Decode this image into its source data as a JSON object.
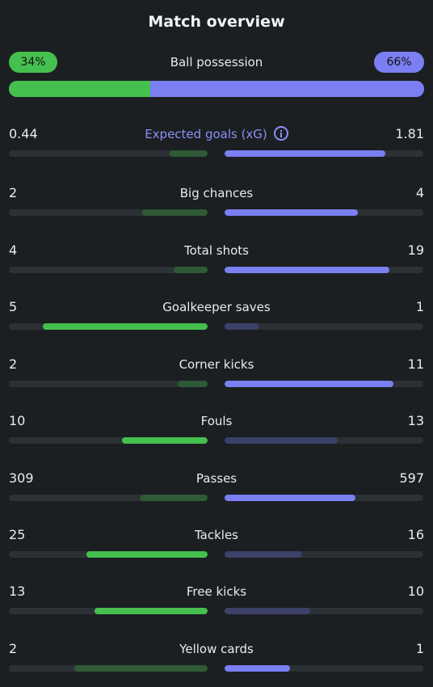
{
  "header": {
    "title": "Match overview"
  },
  "possession": {
    "label": "Ball possession",
    "home": "34%",
    "away": "66%",
    "home_share": 0.34
  },
  "info_label": "i",
  "colors": {
    "home_win": "#45c04e",
    "home_lose": "#2f5a35",
    "away_win": "#7b7ff2",
    "away_lose": "#3c416a",
    "track": "#2c3135",
    "background": "#1b1f22"
  },
  "stats": [
    {
      "label": "Expected goals (xG)",
      "home": "0.44",
      "away": "1.81",
      "home_share": 0.19,
      "away_share": 0.81,
      "winner": "away",
      "info": true
    },
    {
      "label": "Big chances",
      "home": "2",
      "away": "4",
      "home_share": 0.33,
      "away_share": 0.67,
      "winner": "away"
    },
    {
      "label": "Total shots",
      "home": "4",
      "away": "19",
      "home_share": 0.17,
      "away_share": 0.83,
      "winner": "away"
    },
    {
      "label": "Goalkeeper saves",
      "home": "5",
      "away": "1",
      "home_share": 0.83,
      "away_share": 0.17,
      "winner": "home"
    },
    {
      "label": "Corner kicks",
      "home": "2",
      "away": "11",
      "home_share": 0.15,
      "away_share": 0.85,
      "winner": "away"
    },
    {
      "label": "Fouls",
      "home": "10",
      "away": "13",
      "home_share": 0.43,
      "away_share": 0.57,
      "winner": "home"
    },
    {
      "label": "Passes",
      "home": "309",
      "away": "597",
      "home_share": 0.34,
      "away_share": 0.66,
      "winner": "away"
    },
    {
      "label": "Tackles",
      "home": "25",
      "away": "16",
      "home_share": 0.61,
      "away_share": 0.39,
      "winner": "home"
    },
    {
      "label": "Free kicks",
      "home": "13",
      "away": "10",
      "home_share": 0.57,
      "away_share": 0.43,
      "winner": "home"
    },
    {
      "label": "Yellow cards",
      "home": "2",
      "away": "1",
      "home_share": 0.67,
      "away_share": 0.33,
      "winner": "away"
    }
  ]
}
